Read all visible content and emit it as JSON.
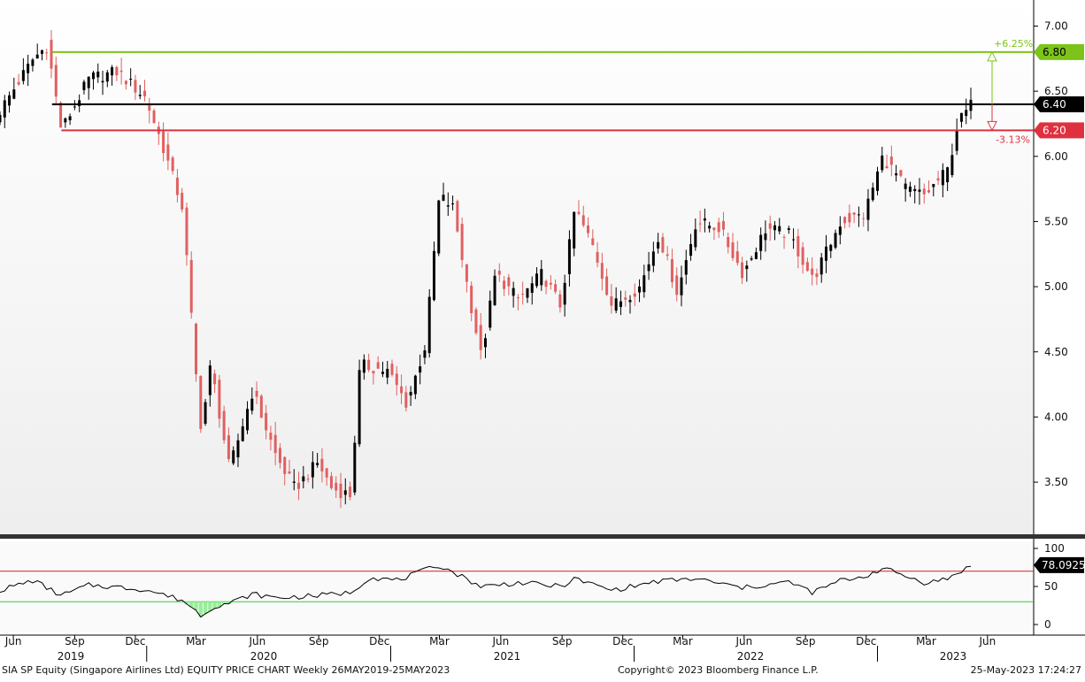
{
  "chart_data": [
    {
      "type": "candlestick",
      "ticker": "SIA SP Equity",
      "ylim": [
        3.1,
        7.2
      ],
      "yticks": [
        "7.00",
        "6.50",
        "6.00",
        "5.50",
        "5.00",
        "4.50",
        "4.00",
        "3.50"
      ],
      "x_month_ticks": [
        "Jun",
        "Sep",
        "Dec",
        "Mar",
        "Jun",
        "Sep",
        "Dec",
        "Mar",
        "Jun",
        "Sep",
        "Dec",
        "Mar",
        "Jun",
        "Sep",
        "Dec",
        "Mar",
        "Jun"
      ],
      "x_year_labels": [
        "2019",
        "2020",
        "2021",
        "2022",
        "2023"
      ],
      "x_start": "2019-05-26",
      "x_end": "2023-05-25",
      "last_price_label": "6.40",
      "last_price": 6.4,
      "upper_line": {
        "value": 6.8,
        "label": "6.80",
        "pct_label": "+6.25%",
        "color": "#7dc31a"
      },
      "lower_line": {
        "value": 6.2,
        "label": "6.20",
        "pct_label": "-3.13%",
        "color": "#e03040"
      },
      "up_color": "#000000",
      "down_color": "#e06060",
      "anchors": [
        {
          "date": "2019-05-26",
          "close": 6.35
        },
        {
          "date": "2019-07-15",
          "close": 6.75
        },
        {
          "date": "2019-08-05",
          "close": 6.85
        },
        {
          "date": "2019-08-26",
          "close": 6.2
        },
        {
          "date": "2019-10-07",
          "close": 6.6
        },
        {
          "date": "2019-11-18",
          "close": 6.65
        },
        {
          "date": "2019-12-30",
          "close": 6.45
        },
        {
          "date": "2020-01-27",
          "close": 6.05
        },
        {
          "date": "2020-02-24",
          "close": 5.6
        },
        {
          "date": "2020-03-16",
          "close": 4.25
        },
        {
          "date": "2020-03-23",
          "close": 3.9
        },
        {
          "date": "2020-04-06",
          "close": 4.4
        },
        {
          "date": "2020-05-04",
          "close": 3.6
        },
        {
          "date": "2020-06-08",
          "close": 4.2
        },
        {
          "date": "2020-07-13",
          "close": 3.7
        },
        {
          "date": "2020-08-10",
          "close": 3.45
        },
        {
          "date": "2020-09-14",
          "close": 3.65
        },
        {
          "date": "2020-10-05",
          "close": 3.45
        },
        {
          "date": "2020-11-02",
          "close": 3.4
        },
        {
          "date": "2020-11-16",
          "close": 4.4
        },
        {
          "date": "2020-12-28",
          "close": 4.35
        },
        {
          "date": "2021-01-25",
          "close": 4.1
        },
        {
          "date": "2021-02-22",
          "close": 4.55
        },
        {
          "date": "2021-03-15",
          "close": 5.7
        },
        {
          "date": "2021-04-05",
          "close": 5.6
        },
        {
          "date": "2021-04-26",
          "close": 5.0
        },
        {
          "date": "2021-05-17",
          "close": 4.45
        },
        {
          "date": "2021-06-07",
          "close": 5.1
        },
        {
          "date": "2021-07-12",
          "close": 4.9
        },
        {
          "date": "2021-08-16",
          "close": 5.1
        },
        {
          "date": "2021-09-13",
          "close": 4.85
        },
        {
          "date": "2021-10-04",
          "close": 5.6
        },
        {
          "date": "2021-11-01",
          "close": 5.3
        },
        {
          "date": "2021-11-29",
          "close": 4.85
        },
        {
          "date": "2022-01-10",
          "close": 5.0
        },
        {
          "date": "2022-02-07",
          "close": 5.4
        },
        {
          "date": "2022-03-07",
          "close": 4.95
        },
        {
          "date": "2022-04-04",
          "close": 5.5
        },
        {
          "date": "2022-05-09",
          "close": 5.45
        },
        {
          "date": "2022-06-13",
          "close": 5.1
        },
        {
          "date": "2022-07-18",
          "close": 5.45
        },
        {
          "date": "2022-08-22",
          "close": 5.4
        },
        {
          "date": "2022-09-26",
          "close": 5.05
        },
        {
          "date": "2022-11-07",
          "close": 5.5
        },
        {
          "date": "2022-12-12",
          "close": 5.55
        },
        {
          "date": "2023-01-09",
          "close": 6.0
        },
        {
          "date": "2023-02-13",
          "close": 5.75
        },
        {
          "date": "2023-03-13",
          "close": 5.7
        },
        {
          "date": "2023-04-17",
          "close": 5.9
        },
        {
          "date": "2023-05-01",
          "close": 6.25
        },
        {
          "date": "2023-05-22",
          "close": 6.4
        }
      ]
    },
    {
      "type": "line",
      "indicator": "RSI",
      "ylim": [
        0,
        100
      ],
      "yticks": [
        "100",
        "50",
        "0"
      ],
      "overbought": 70,
      "oversold": 30,
      "last_value_label": "78.0925",
      "line_color": "#000000",
      "overbought_color": "#cc2222",
      "oversold_color": "#33cc33",
      "anchors": [
        {
          "date": "2019-05-26",
          "value": 45
        },
        {
          "date": "2019-07-15",
          "value": 58
        },
        {
          "date": "2019-08-26",
          "value": 38
        },
        {
          "date": "2019-10-07",
          "value": 52
        },
        {
          "date": "2019-12-30",
          "value": 46
        },
        {
          "date": "2020-02-24",
          "value": 32
        },
        {
          "date": "2020-03-23",
          "value": 12
        },
        {
          "date": "2020-04-13",
          "value": 25
        },
        {
          "date": "2020-05-04",
          "value": 28
        },
        {
          "date": "2020-06-08",
          "value": 40
        },
        {
          "date": "2020-07-13",
          "value": 35
        },
        {
          "date": "2020-09-14",
          "value": 38
        },
        {
          "date": "2020-11-02",
          "value": 42
        },
        {
          "date": "2020-11-30",
          "value": 62
        },
        {
          "date": "2021-01-11",
          "value": 58
        },
        {
          "date": "2021-03-15",
          "value": 78
        },
        {
          "date": "2021-05-17",
          "value": 50
        },
        {
          "date": "2021-07-12",
          "value": 55
        },
        {
          "date": "2021-09-13",
          "value": 50
        },
        {
          "date": "2021-10-04",
          "value": 60
        },
        {
          "date": "2021-11-29",
          "value": 45
        },
        {
          "date": "2022-02-07",
          "value": 57
        },
        {
          "date": "2022-04-04",
          "value": 60
        },
        {
          "date": "2022-06-13",
          "value": 48
        },
        {
          "date": "2022-08-22",
          "value": 56
        },
        {
          "date": "2022-09-26",
          "value": 42
        },
        {
          "date": "2022-11-07",
          "value": 58
        },
        {
          "date": "2022-12-12",
          "value": 63
        },
        {
          "date": "2023-01-09",
          "value": 74
        },
        {
          "date": "2023-03-13",
          "value": 55
        },
        {
          "date": "2023-04-17",
          "value": 60
        },
        {
          "date": "2023-05-01",
          "value": 68
        },
        {
          "date": "2023-05-22",
          "value": 78
        }
      ]
    }
  ],
  "footer": {
    "left": "SIA SP Equity (Singapore Airlines Ltd) EQUITY PRICE CHART  Weekly 26MAY2019-25MAY2023",
    "center": "Copyright© 2023 Bloomberg Finance L.P.",
    "right": "25-May-2023 17:24:27"
  }
}
